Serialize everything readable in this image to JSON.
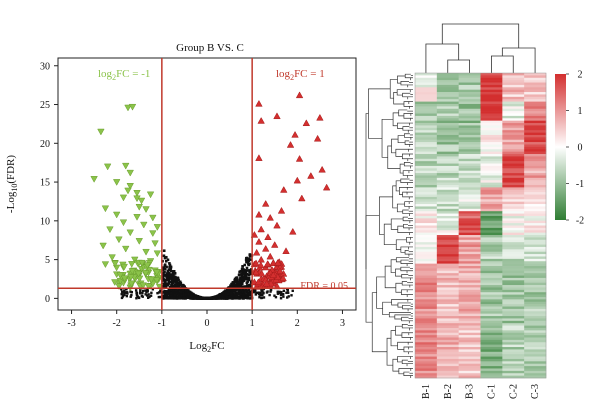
{
  "chart_data": [
    {
      "type": "scatter",
      "title": "Group B VS. C",
      "xlabel_main": "Log",
      "xlabel_sub": "2",
      "xlabel_tail": "FC",
      "ylabel_main": "-Log",
      "ylabel_sub": "10",
      "ylabel_tail": "(FDR)",
      "xlim": [
        -3.3,
        3.3
      ],
      "ylim": [
        -1.5,
        31
      ],
      "xticks": [
        -3,
        -2,
        -1,
        0,
        1,
        2,
        3
      ],
      "yticks": [
        0,
        5,
        10,
        15,
        20,
        25,
        30
      ],
      "colors": {
        "down": "#8bc34a",
        "up": "#d32f2f",
        "ns": "#111111",
        "threshold": "#c0392b"
      },
      "thresholds": {
        "fc_low": -1,
        "fc_high": 1,
        "fdr_line_y": 1.3
      },
      "annotations": {
        "down_main": "log",
        "down_sub": "2",
        "down_tail": "FC = -1",
        "up_main": "log",
        "up_sub": "2",
        "up_tail": "FC = 1",
        "fdr": "FDR = 0.05"
      },
      "series": [
        {
          "group": "down",
          "marker": "triangle-down",
          "points": [
            [
              -1.75,
              24.6
            ],
            [
              -1.65,
              24.7
            ],
            [
              -2.35,
              21.5
            ],
            [
              -2.2,
              17.0
            ],
            [
              -1.8,
              17.1
            ],
            [
              -1.7,
              16.2
            ],
            [
              -2.5,
              15.4
            ],
            [
              -2.0,
              15.0
            ],
            [
              -1.7,
              14.5
            ],
            [
              -1.75,
              13.9
            ],
            [
              -1.55,
              13.6
            ],
            [
              -1.25,
              13.4
            ],
            [
              -1.85,
              13.0
            ],
            [
              -1.55,
              12.9
            ],
            [
              -1.45,
              12.6
            ],
            [
              -2.25,
              11.6
            ],
            [
              -1.5,
              11.8
            ],
            [
              -1.35,
              11.5
            ],
            [
              -2.0,
              10.8
            ],
            [
              -1.55,
              10.5
            ],
            [
              -1.2,
              10.4
            ],
            [
              -1.85,
              9.8
            ],
            [
              -1.4,
              9.5
            ],
            [
              -1.1,
              9.2
            ],
            [
              -2.15,
              8.9
            ],
            [
              -1.7,
              8.5
            ],
            [
              -1.2,
              8.4
            ],
            [
              -1.95,
              7.6
            ],
            [
              -1.5,
              7.4
            ],
            [
              -1.15,
              7.1
            ],
            [
              -2.3,
              6.8
            ],
            [
              -1.8,
              6.4
            ],
            [
              -1.35,
              6.0
            ],
            [
              -1.1,
              5.8
            ],
            [
              -2.1,
              5.3
            ],
            [
              -1.6,
              5.0
            ],
            [
              -1.25,
              4.8
            ],
            [
              -2.25,
              4.4
            ],
            [
              -1.85,
              4.0
            ],
            [
              -1.45,
              3.8
            ],
            [
              -1.15,
              3.6
            ],
            [
              -2.0,
              3.1
            ],
            [
              -1.6,
              2.8
            ],
            [
              -1.3,
              2.5
            ],
            [
              -1.1,
              2.3
            ],
            [
              -1.85,
              2.0
            ],
            [
              -1.5,
              1.8
            ],
            [
              -1.25,
              1.6
            ],
            [
              -1.05,
              1.5
            ],
            [
              -1.7,
              1.4
            ]
          ]
        },
        {
          "group": "up",
          "marker": "triangle-up",
          "points": [
            [
              2.05,
              26.2
            ],
            [
              1.15,
              25.1
            ],
            [
              1.55,
              23.5
            ],
            [
              2.5,
              23.3
            ],
            [
              1.2,
              22.9
            ],
            [
              2.2,
              22.6
            ],
            [
              1.95,
              21.1
            ],
            [
              2.45,
              20.6
            ],
            [
              1.85,
              19.8
            ],
            [
              2.05,
              18.0
            ],
            [
              1.15,
              18.1
            ],
            [
              2.55,
              16.6
            ],
            [
              2.3,
              15.8
            ],
            [
              2.0,
              15.2
            ],
            [
              2.65,
              14.3
            ],
            [
              1.7,
              14.0
            ],
            [
              2.1,
              12.9
            ],
            [
              1.3,
              12.2
            ],
            [
              1.65,
              11.3
            ],
            [
              1.15,
              10.8
            ],
            [
              1.4,
              10.4
            ],
            [
              1.55,
              9.4
            ],
            [
              1.2,
              8.9
            ],
            [
              1.9,
              8.6
            ],
            [
              1.05,
              8.2
            ],
            [
              1.35,
              7.9
            ],
            [
              1.15,
              7.3
            ],
            [
              1.5,
              6.9
            ],
            [
              1.3,
              6.4
            ],
            [
              1.75,
              6.1
            ],
            [
              1.1,
              5.9
            ],
            [
              1.4,
              5.4
            ],
            [
              1.2,
              5.0
            ],
            [
              1.6,
              4.7
            ],
            [
              1.05,
              4.4
            ],
            [
              1.3,
              4.0
            ],
            [
              1.5,
              3.6
            ],
            [
              1.15,
              3.3
            ],
            [
              1.35,
              2.9
            ],
            [
              1.2,
              2.5
            ],
            [
              1.05,
              2.1
            ],
            [
              1.45,
              1.9
            ],
            [
              1.25,
              1.6
            ],
            [
              1.1,
              1.5
            ]
          ]
        }
      ],
      "ns_cloud": {
        "count": 1300,
        "x_min": -1.0,
        "x_max": 1.0,
        "y_at_edge": 7.0,
        "y_at_center": 0.05
      }
    },
    {
      "type": "heatmap",
      "columns": [
        "B-1",
        "B-2",
        "B-3",
        "C-1",
        "C-2",
        "C-3"
      ],
      "column_order_note": "",
      "scale": {
        "min": -2,
        "max": 2,
        "ticks": [
          2,
          1,
          0,
          -1,
          -2
        ],
        "low_color": "#2e7d32",
        "mid_color": "#ffffff",
        "high_color": "#d32f2f"
      },
      "row_blocks": [
        {
          "rows": 12,
          "values": [
            0.0,
            -1.0,
            -0.8,
            2.0,
            0.6,
            0.6
          ]
        },
        {
          "rows": 8,
          "values": [
            -0.8,
            -0.8,
            -1.0,
            2.0,
            -0.3,
            1.2
          ]
        },
        {
          "rows": 14,
          "values": [
            -0.6,
            -0.9,
            -1.0,
            0.1,
            1.0,
            1.8
          ]
        },
        {
          "rows": 14,
          "values": [
            -0.7,
            -0.6,
            -0.6,
            -0.2,
            1.9,
            0.9
          ]
        },
        {
          "rows": 10,
          "values": [
            -0.4,
            -0.5,
            -0.3,
            0.8,
            0.5,
            0.2
          ]
        },
        {
          "rows": 10,
          "values": [
            0.1,
            -0.2,
            1.6,
            -1.4,
            0.0,
            0.1
          ]
        },
        {
          "rows": 12,
          "values": [
            0.0,
            1.8,
            0.9,
            -0.7,
            -0.6,
            -0.5
          ]
        },
        {
          "rows": 26,
          "values": [
            1.1,
            0.6,
            0.7,
            -0.9,
            -0.9,
            -0.8
          ]
        },
        {
          "rows": 22,
          "values": [
            1.2,
            0.8,
            0.6,
            -1.2,
            -0.7,
            -0.7
          ]
        }
      ]
    }
  ]
}
